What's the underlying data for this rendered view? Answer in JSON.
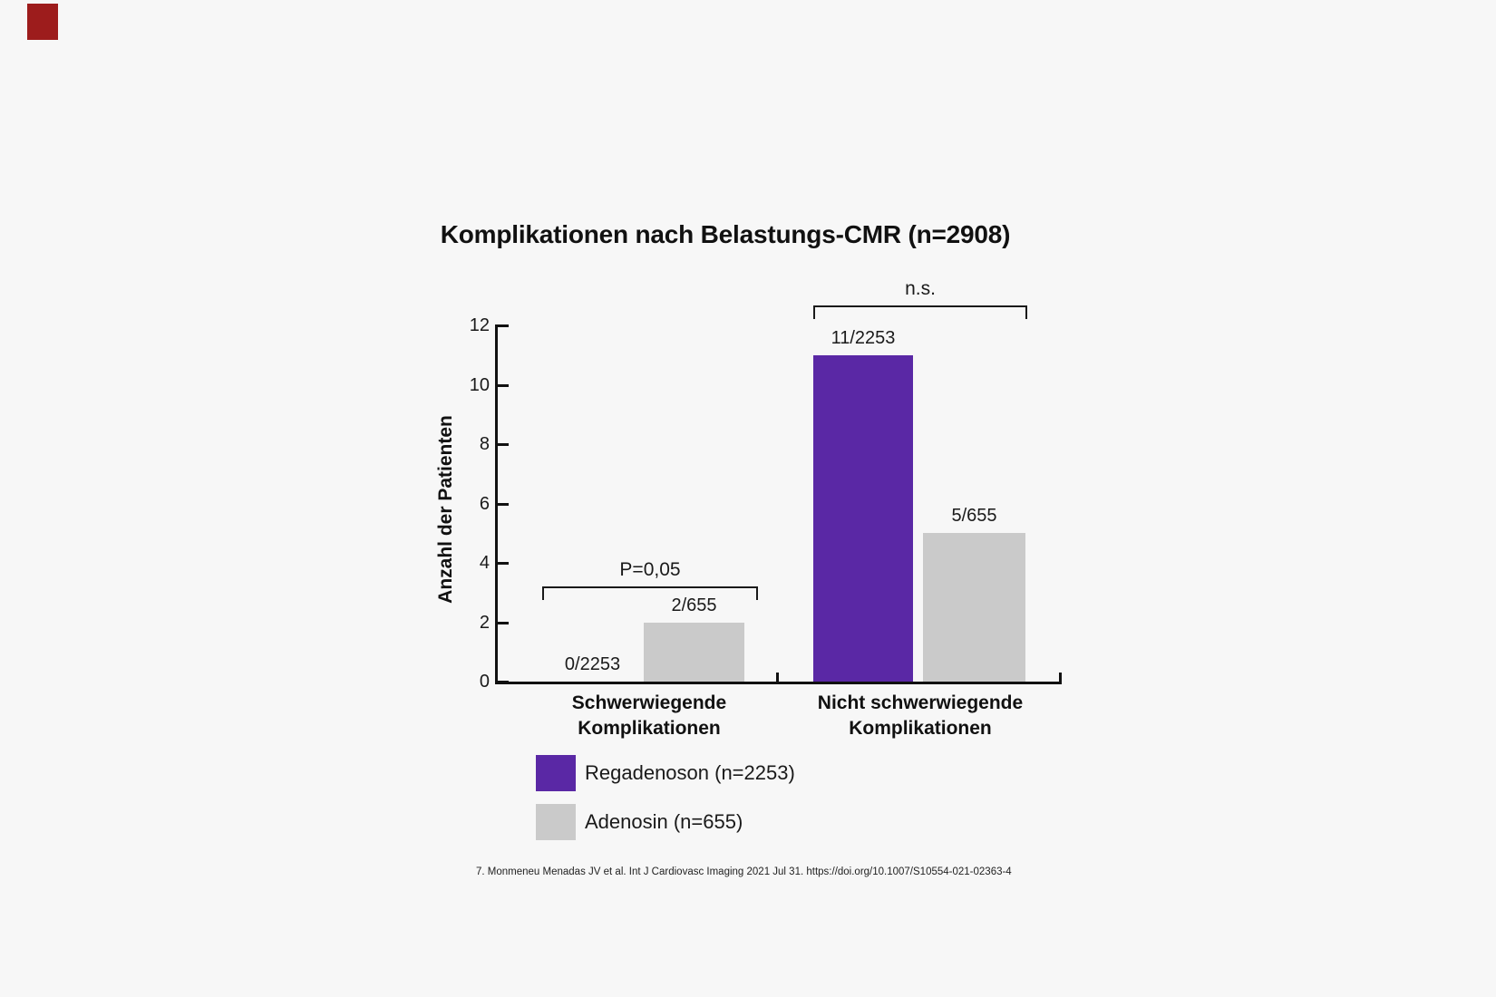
{
  "brand_mark": {
    "color": "#9d1c1c"
  },
  "chart_data": {
    "type": "bar",
    "title": "Komplikationen nach Belastungs-CMR (n=2908)",
    "ylabel": "Anzahl der Patienten",
    "xlabel": "",
    "ylim": [
      0,
      12
    ],
    "yticks": [
      0,
      2,
      4,
      6,
      8,
      10,
      12
    ],
    "grid": false,
    "legend_position": "below-left",
    "categories": [
      "Schwerwiegende\nKomplikationen",
      "Nicht schwerwiegende\nKomplikationen"
    ],
    "series": [
      {
        "name": "Regadenoson (n=2253)",
        "color": "#5a28a5",
        "values": [
          0,
          11
        ],
        "bar_labels": [
          "0/2253",
          "11/2253"
        ]
      },
      {
        "name": "Adenosin (n=655)",
        "color": "#cacaca",
        "values": [
          2,
          5
        ],
        "bar_labels": [
          "2/655",
          "5/655"
        ]
      }
    ],
    "significance": [
      {
        "group": "Schwerwiegende Komplikationen",
        "label": "P=0,05"
      },
      {
        "group": "Nicht schwerwiegende Komplikationen",
        "label": "n.s."
      }
    ]
  },
  "footnote": "7. Monmeneu Menadas JV et al. Int J Cardiovasc Imaging 2021 Jul 31. https://doi.org/10.1007/S10554-021-02363-4"
}
